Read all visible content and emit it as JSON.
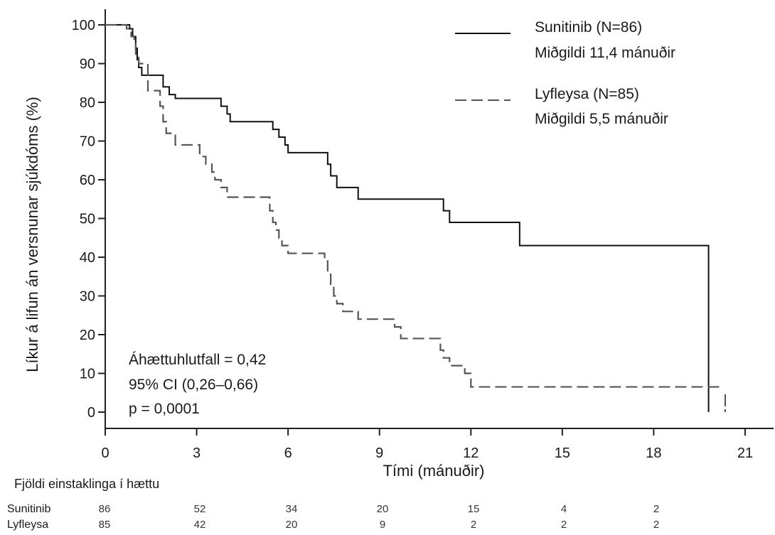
{
  "chart_data": {
    "type": "line",
    "subtype": "kaplan-meier step curve",
    "xlabel": "Tími (mánuðir)",
    "ylabel": "Líkur á lifun án versnunar sjúkdóms (%)",
    "xlim": [
      0,
      21
    ],
    "ylim": [
      0,
      100
    ],
    "xticks": [
      0,
      3,
      6,
      9,
      12,
      15,
      18,
      21
    ],
    "yticks": [
      0,
      10,
      20,
      30,
      40,
      50,
      60,
      70,
      80,
      90,
      100
    ],
    "grid": false,
    "legend_position": "top-right",
    "series": [
      {
        "name": "Sunitinib (N=86)",
        "legend_detail": "Miðgildi 11,4 mánuðir",
        "line_style": "solid",
        "color": "#111111",
        "x": [
          0,
          0.8,
          0.9,
          1.0,
          1.05,
          1.1,
          1.2,
          1.3,
          1.9,
          2.1,
          2.3,
          3.8,
          4.0,
          4.1,
          4.2,
          5.5,
          5.7,
          5.9,
          6.0,
          7.3,
          7.4,
          7.6,
          8.3,
          11.1,
          11.3,
          13.6,
          19.8
        ],
        "y": [
          100,
          99,
          97,
          94,
          91,
          89,
          87,
          87,
          84,
          82,
          81,
          79,
          77,
          75,
          75,
          73,
          71,
          69,
          67,
          64,
          61,
          58,
          55,
          52,
          49,
          43,
          0
        ]
      },
      {
        "name": "Lyfleysa (N=85)",
        "legend_detail": "Miðgildi 5,5 mánuðir",
        "line_style": "dashed",
        "color": "#555555",
        "x": [
          0,
          0.7,
          0.85,
          0.95,
          1.0,
          1.1,
          1.4,
          1.8,
          1.9,
          2.0,
          2.3,
          3.1,
          3.3,
          3.5,
          3.6,
          3.8,
          4.0,
          5.4,
          5.5,
          5.6,
          5.7,
          5.8,
          6.0,
          7.2,
          7.3,
          7.4,
          7.5,
          7.6,
          7.8,
          8.3,
          9.5,
          9.7,
          11.0,
          11.1,
          11.3,
          11.8,
          12.0,
          20.3
        ],
        "y": [
          100,
          99,
          97,
          95,
          92,
          90,
          83,
          79,
          75,
          72,
          69,
          66,
          64,
          62,
          60,
          58,
          55.5,
          52,
          49,
          47,
          45,
          43,
          41,
          39,
          36,
          33,
          30,
          28,
          26,
          24,
          22,
          19,
          16,
          14,
          12,
          10,
          6.5,
          6.5
        ]
      }
    ],
    "annotations": [
      "Áhættuhlutfall = 0,42",
      "95% CI (0,26–0,66)",
      "p = 0,0001"
    ],
    "risk_table": {
      "title": "Fjöldi einstaklinga í hættu",
      "rows": [
        {
          "name": "Sunitinib",
          "values": [
            86,
            52,
            34,
            20,
            15,
            4,
            2
          ]
        },
        {
          "name": "Lyfleysa",
          "values": [
            85,
            42,
            20,
            9,
            2,
            2,
            2
          ]
        }
      ]
    }
  }
}
